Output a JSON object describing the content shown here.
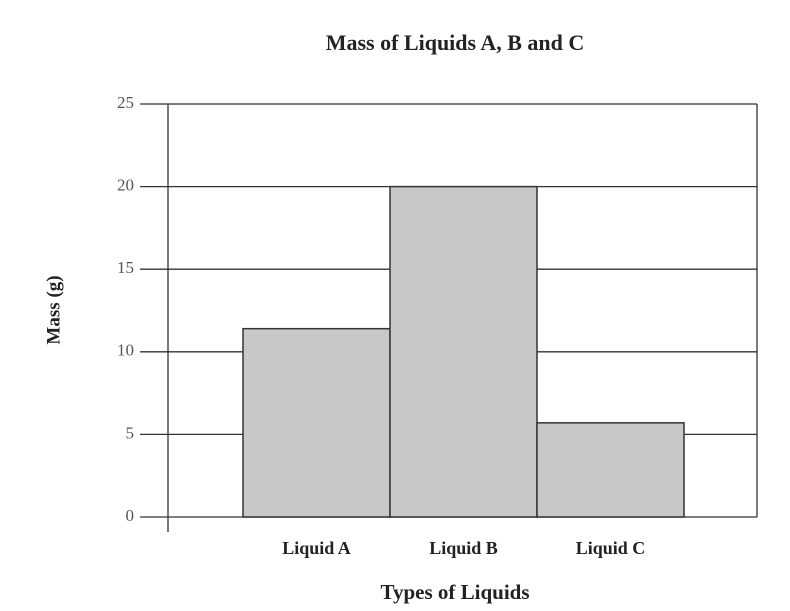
{
  "chart_data": {
    "type": "bar",
    "title": "Mass of Liquids A, B and C",
    "x_label": "Types of Liquids",
    "y_label": "Mass (g)",
    "categories": [
      "Liquid A",
      "Liquid B",
      "Liquid C"
    ],
    "values": [
      11.4,
      20,
      5.7
    ],
    "color": "#c8c8c8",
    "ylim": [
      0,
      25
    ],
    "yticks": [
      0,
      5,
      10,
      15,
      20,
      25
    ],
    "grid": true
  }
}
